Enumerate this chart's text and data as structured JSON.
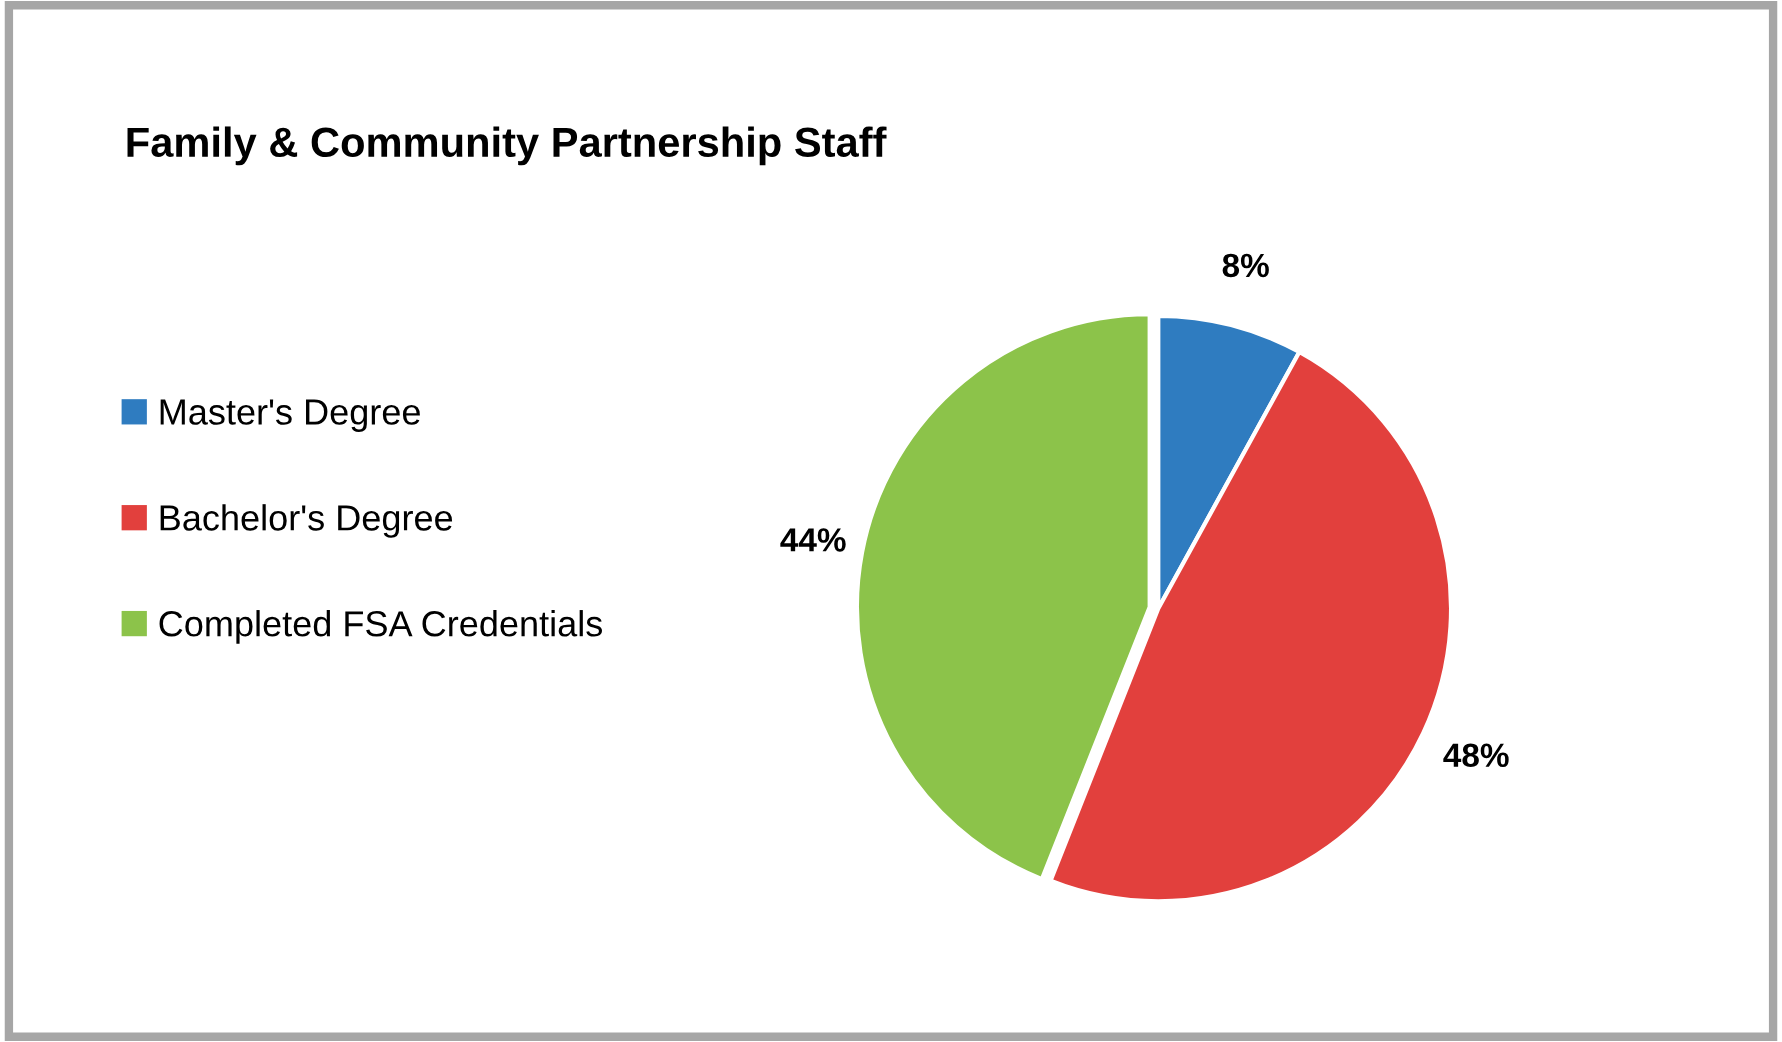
{
  "chart_data": {
    "type": "pie",
    "title": "Family & Community Partnership Staff",
    "categories": [
      "Master's Degree",
      "Bachelor's Degree",
      "Completed FSA Credentials"
    ],
    "values": [
      8,
      48,
      44
    ],
    "colors": [
      "#2f7cc0",
      "#e2403d",
      "#8cc34a"
    ],
    "value_labels": [
      "8%",
      "48%",
      "44%"
    ],
    "legend": "left"
  }
}
